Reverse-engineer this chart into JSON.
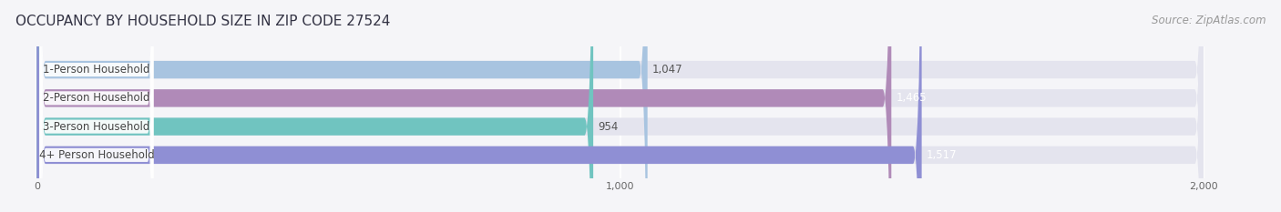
{
  "title": "OCCUPANCY BY HOUSEHOLD SIZE IN ZIP CODE 27524",
  "source": "Source: ZipAtlas.com",
  "categories": [
    "1-Person Household",
    "2-Person Household",
    "3-Person Household",
    "4+ Person Household"
  ],
  "values": [
    1047,
    1465,
    954,
    1517
  ],
  "bar_colors": [
    "#a8c4e0",
    "#b08ab8",
    "#70c4c0",
    "#8f8fd4"
  ],
  "value_label_colors": [
    "#555555",
    "#ffffff",
    "#555555",
    "#ffffff"
  ],
  "xlim_min": 0,
  "xlim_max": 2000,
  "xticks": [
    0,
    1000,
    2000
  ],
  "bg_color": "#f5f5f8",
  "bar_bg_color": "#e4e4ee",
  "title_color": "#333344",
  "source_color": "#999999",
  "label_text_color": "#444444",
  "title_fontsize": 11,
  "source_fontsize": 8.5,
  "bar_label_fontsize": 8.5,
  "value_fontsize": 8.5,
  "tick_fontsize": 8,
  "bar_height": 0.62,
  "bar_gap": 1.0
}
